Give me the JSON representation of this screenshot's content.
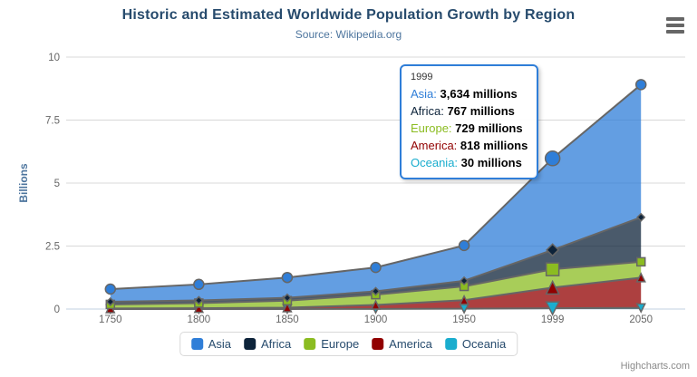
{
  "credits": "Highcharts.com",
  "chart_data": {
    "type": "area",
    "stacking": "normal",
    "title": "Historic and Estimated Worldwide Population Growth by Region",
    "subtitle": "Source: Wikipedia.org",
    "categories": [
      "1750",
      "1800",
      "1850",
      "1900",
      "1950",
      "1999",
      "2050"
    ],
    "xlabel": "",
    "ylabel": "Billions",
    "ylim": [
      0,
      10
    ],
    "yticks": [
      "0",
      "2.5",
      "5",
      "7.5",
      "10"
    ],
    "values_unit": "millions",
    "grid": true,
    "legend_position": "bottom",
    "line_color": "#666666",
    "fill_opacity": 0.75,
    "hover_index": 5,
    "series": [
      {
        "name": "Asia",
        "color": "#2f7ed8",
        "marker": "circle",
        "values": [
          502,
          635,
          809,
          947,
          1402,
          3634,
          5268
        ]
      },
      {
        "name": "Africa",
        "color": "#0d233a",
        "marker": "diamond",
        "values": [
          106,
          107,
          111,
          133,
          221,
          767,
          1766
        ]
      },
      {
        "name": "Europe",
        "color": "#8bbc21",
        "marker": "square",
        "values": [
          163,
          203,
          276,
          408,
          547,
          729,
          628
        ]
      },
      {
        "name": "America",
        "color": "#910000",
        "marker": "triangle",
        "values": [
          18,
          31,
          54,
          156,
          339,
          818,
          1201
        ]
      },
      {
        "name": "Oceania",
        "color": "#1aadce",
        "marker": "triangle-down",
        "values": [
          2,
          2,
          2,
          6,
          13,
          30,
          46
        ]
      }
    ]
  },
  "tooltip": {
    "header": "1999",
    "border_color": "#2f7ed8",
    "rows": [
      {
        "name": "Asia",
        "value": "3,634 millions",
        "color": "#2f7ed8"
      },
      {
        "name": "Africa",
        "value": "767 millions",
        "color": "#0d233a"
      },
      {
        "name": "Europe",
        "value": "729 millions",
        "color": "#8bbc21"
      },
      {
        "name": "America",
        "value": "818 millions",
        "color": "#910000"
      },
      {
        "name": "Oceania",
        "value": "30 millions",
        "color": "#1aadce"
      }
    ]
  }
}
